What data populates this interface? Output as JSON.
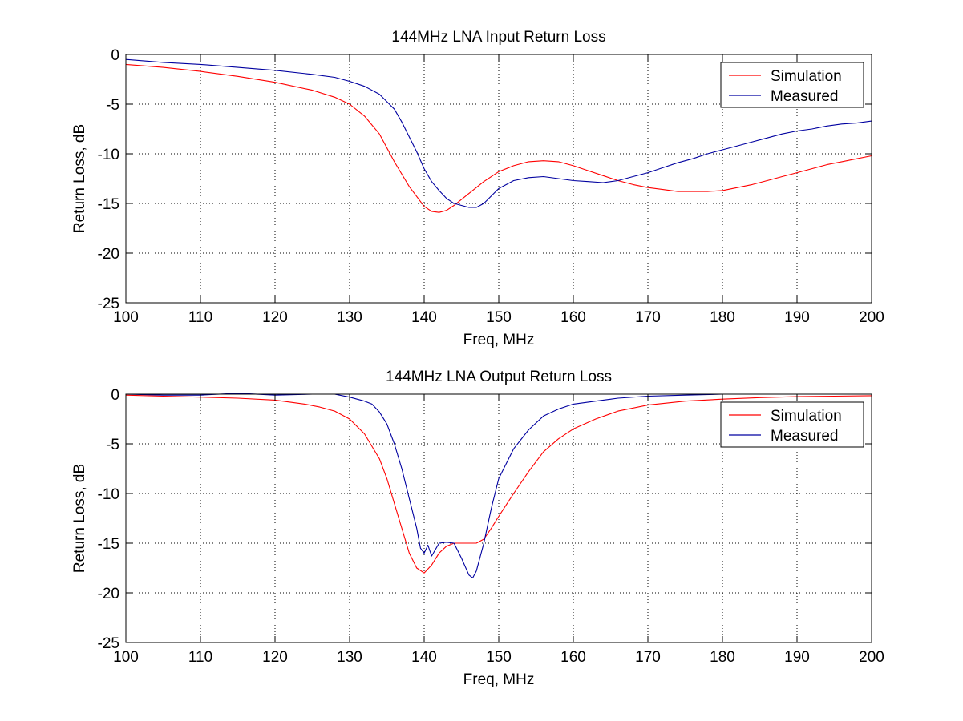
{
  "chart_data": [
    {
      "type": "line",
      "title": "144MHz LNA Input Return Loss",
      "xlabel": "Freq, MHz",
      "ylabel": "Return Loss, dB",
      "xlim": [
        100,
        200
      ],
      "ylim": [
        -25,
        0
      ],
      "xticks": [
        100,
        110,
        120,
        130,
        140,
        150,
        160,
        170,
        180,
        190,
        200
      ],
      "yticks": [
        0,
        -5,
        -10,
        -15,
        -20,
        -25
      ],
      "grid": true,
      "legend_position": "top-right",
      "series": [
        {
          "name": "Simulation",
          "color": "#ff0000",
          "x": [
            100,
            105,
            110,
            115,
            120,
            125,
            128,
            130,
            132,
            134,
            136,
            138,
            140,
            141,
            142,
            143,
            144,
            146,
            148,
            150,
            152,
            154,
            156,
            158,
            160,
            162,
            164,
            166,
            168,
            170,
            172,
            174,
            176,
            178,
            180,
            182,
            184,
            186,
            188,
            190,
            192,
            194,
            196,
            198,
            200
          ],
          "y": [
            -1.0,
            -1.3,
            -1.7,
            -2.2,
            -2.8,
            -3.6,
            -4.3,
            -5.0,
            -6.2,
            -8.0,
            -10.8,
            -13.3,
            -15.3,
            -15.8,
            -15.9,
            -15.7,
            -15.2,
            -14.0,
            -12.8,
            -11.8,
            -11.2,
            -10.8,
            -10.7,
            -10.8,
            -11.2,
            -11.7,
            -12.2,
            -12.7,
            -13.1,
            -13.4,
            -13.6,
            -13.8,
            -13.8,
            -13.8,
            -13.7,
            -13.4,
            -13.1,
            -12.7,
            -12.3,
            -11.9,
            -11.5,
            -11.1,
            -10.8,
            -10.5,
            -10.2
          ]
        },
        {
          "name": "Measured",
          "color": "#0000a0",
          "x": [
            100,
            105,
            110,
            115,
            120,
            125,
            128,
            130,
            132,
            134,
            136,
            137,
            138,
            139,
            140,
            141,
            142,
            143,
            144,
            145,
            146,
            147,
            148,
            150,
            152,
            154,
            156,
            158,
            160,
            162,
            164,
            166,
            168,
            170,
            172,
            174,
            176,
            178,
            180,
            182,
            184,
            186,
            188,
            190,
            192,
            194,
            196,
            198,
            200
          ],
          "y": [
            -0.5,
            -0.8,
            -1.0,
            -1.3,
            -1.6,
            -2.0,
            -2.3,
            -2.7,
            -3.2,
            -4.0,
            -5.5,
            -6.8,
            -8.3,
            -9.8,
            -11.5,
            -12.8,
            -13.7,
            -14.5,
            -15.0,
            -15.2,
            -15.4,
            -15.4,
            -15.0,
            -13.5,
            -12.7,
            -12.4,
            -12.3,
            -12.5,
            -12.7,
            -12.8,
            -12.9,
            -12.7,
            -12.3,
            -11.9,
            -11.4,
            -10.9,
            -10.5,
            -10.0,
            -9.6,
            -9.2,
            -8.8,
            -8.4,
            -8.0,
            -7.7,
            -7.5,
            -7.2,
            -7.0,
            -6.9,
            -6.7
          ]
        }
      ]
    },
    {
      "type": "line",
      "title": "144MHz LNA Output Return Loss",
      "xlabel": "Freq, MHz",
      "ylabel": "Return Loss, dB",
      "xlim": [
        100,
        200
      ],
      "ylim": [
        -25,
        0
      ],
      "xticks": [
        100,
        110,
        120,
        130,
        140,
        150,
        160,
        170,
        180,
        190,
        200
      ],
      "yticks": [
        0,
        -5,
        -10,
        -15,
        -20,
        -25
      ],
      "grid": true,
      "legend_position": "top-right",
      "series": [
        {
          "name": "Simulation",
          "color": "#ff0000",
          "x": [
            100,
            105,
            110,
            115,
            120,
            124,
            126,
            128,
            130,
            132,
            134,
            135,
            136,
            137,
            138,
            139,
            140,
            141,
            142,
            143,
            144,
            145,
            146,
            147,
            148,
            149,
            150,
            152,
            154,
            156,
            158,
            160,
            163,
            166,
            170,
            175,
            180,
            185,
            190,
            195,
            200
          ],
          "y": [
            -0.1,
            -0.2,
            -0.3,
            -0.4,
            -0.6,
            -1.0,
            -1.3,
            -1.7,
            -2.5,
            -4.0,
            -6.5,
            -8.5,
            -11.0,
            -13.5,
            -16.0,
            -17.5,
            -18.0,
            -17.2,
            -16.0,
            -15.3,
            -15.0,
            -15.0,
            -15.0,
            -15.0,
            -14.6,
            -13.5,
            -12.3,
            -10.0,
            -7.8,
            -5.8,
            -4.5,
            -3.5,
            -2.5,
            -1.7,
            -1.1,
            -0.7,
            -0.5,
            -0.35,
            -0.25,
            -0.2,
            -0.15
          ]
        },
        {
          "name": "Measured",
          "color": "#0000a0",
          "x": [
            100,
            105,
            110,
            115,
            120,
            125,
            128,
            130,
            132,
            133,
            134,
            135,
            136,
            137,
            138,
            139,
            139.5,
            140,
            140.5,
            141,
            142,
            143,
            144,
            145,
            146,
            146.5,
            147,
            148,
            149,
            150,
            152,
            154,
            156,
            158,
            160,
            163,
            166,
            170,
            175,
            180,
            185,
            190,
            195,
            200
          ],
          "y": [
            0.0,
            -0.1,
            -0.1,
            0.1,
            -0.1,
            0.0,
            0.0,
            -0.3,
            -0.7,
            -1.0,
            -1.8,
            -3.0,
            -5.0,
            -7.5,
            -10.5,
            -13.5,
            -15.5,
            -16.0,
            -15.2,
            -16.3,
            -15.0,
            -14.9,
            -15.0,
            -16.5,
            -18.2,
            -18.5,
            -17.8,
            -15.0,
            -11.5,
            -8.5,
            -5.5,
            -3.6,
            -2.2,
            -1.5,
            -1.0,
            -0.7,
            -0.4,
            -0.2,
            -0.1,
            0.0,
            0.0,
            0.0,
            0.0,
            0.0
          ]
        }
      ]
    }
  ]
}
